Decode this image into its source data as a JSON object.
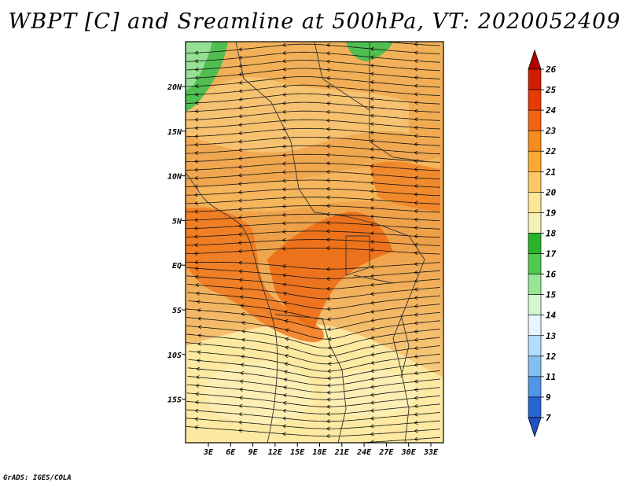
{
  "title": "WBPT [C] and Sreamline at 500hPa, VT: 2020052409",
  "credit": "GrADS: IGES/COLA",
  "map": {
    "lat_ticks": [
      "20N",
      "15N",
      "10N",
      "5N",
      "EQ",
      "5S",
      "10S",
      "15S"
    ],
    "lon_ticks": [
      "3E",
      "6E",
      "9E",
      "12E",
      "15E",
      "18E",
      "21E",
      "24E",
      "27E",
      "30E",
      "33E"
    ],
    "variable": "WBPT",
    "units": "C",
    "level": "500hPa"
  },
  "colorbar": {
    "labels": [
      "26",
      "25",
      "24",
      "23",
      "22",
      "21",
      "20",
      "19",
      "18",
      "17",
      "16",
      "15",
      "14",
      "13",
      "12",
      "11",
      "9",
      "7"
    ],
    "colors": [
      "#b40000",
      "#d21e00",
      "#e63c00",
      "#f06414",
      "#f68c1e",
      "#faaa32",
      "#fcc864",
      "#fde696",
      "#f5f0b4",
      "#28b428",
      "#50c850",
      "#96e696",
      "#d2f5d2",
      "#e6f5ff",
      "#b4dcff",
      "#82bef0",
      "#5096e6",
      "#2864d2",
      "#1e50c8"
    ]
  }
}
